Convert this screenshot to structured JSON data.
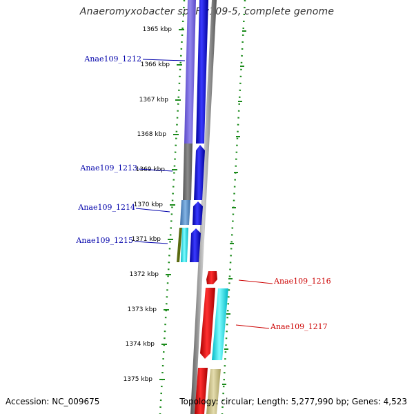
{
  "title": "Anaeromyxobacter sp. Fw109-5, complete genome",
  "footer": {
    "accession": "Accession: NC_009675",
    "summary": "Topology: circular; Length: 5,277,990 bp; Genes: 4,523"
  },
  "ticks": [
    {
      "label": "1365 kbp"
    },
    {
      "label": "1366 kbp"
    },
    {
      "label": "1367 kbp"
    },
    {
      "label": "1368 kbp"
    },
    {
      "label": "1369 kbp"
    },
    {
      "label": "1370 kbp"
    },
    {
      "label": "1371 kbp"
    },
    {
      "label": "1372 kbp"
    },
    {
      "label": "1373 kbp"
    },
    {
      "label": "1374 kbp"
    },
    {
      "label": "1375 kbp"
    }
  ],
  "genes": [
    {
      "name": "Anae109_1212",
      "color": "#0000aa"
    },
    {
      "name": "Anae109_1213",
      "color": "#0000aa"
    },
    {
      "name": "Anae109_1214",
      "color": "#0000aa"
    },
    {
      "name": "Anae109_1215",
      "color": "#0000aa"
    },
    {
      "name": "Anae109_1216",
      "color": "#cc0000"
    },
    {
      "name": "Anae109_1217",
      "color": "#cc0000"
    }
  ],
  "colors": {
    "forward_strand": "#0000ee",
    "reverse_strand": "#ee0000",
    "cyan_track": "#00e5ee",
    "khaki_track": "#c8c08a",
    "slate_track": "#6f5fd6",
    "gray_track": "#6e6e6e",
    "steel_track": "#5b8fc8",
    "olive_track": "#5a6a10",
    "backbone": "#888888",
    "ruler_dots": "#1a8a1a"
  }
}
